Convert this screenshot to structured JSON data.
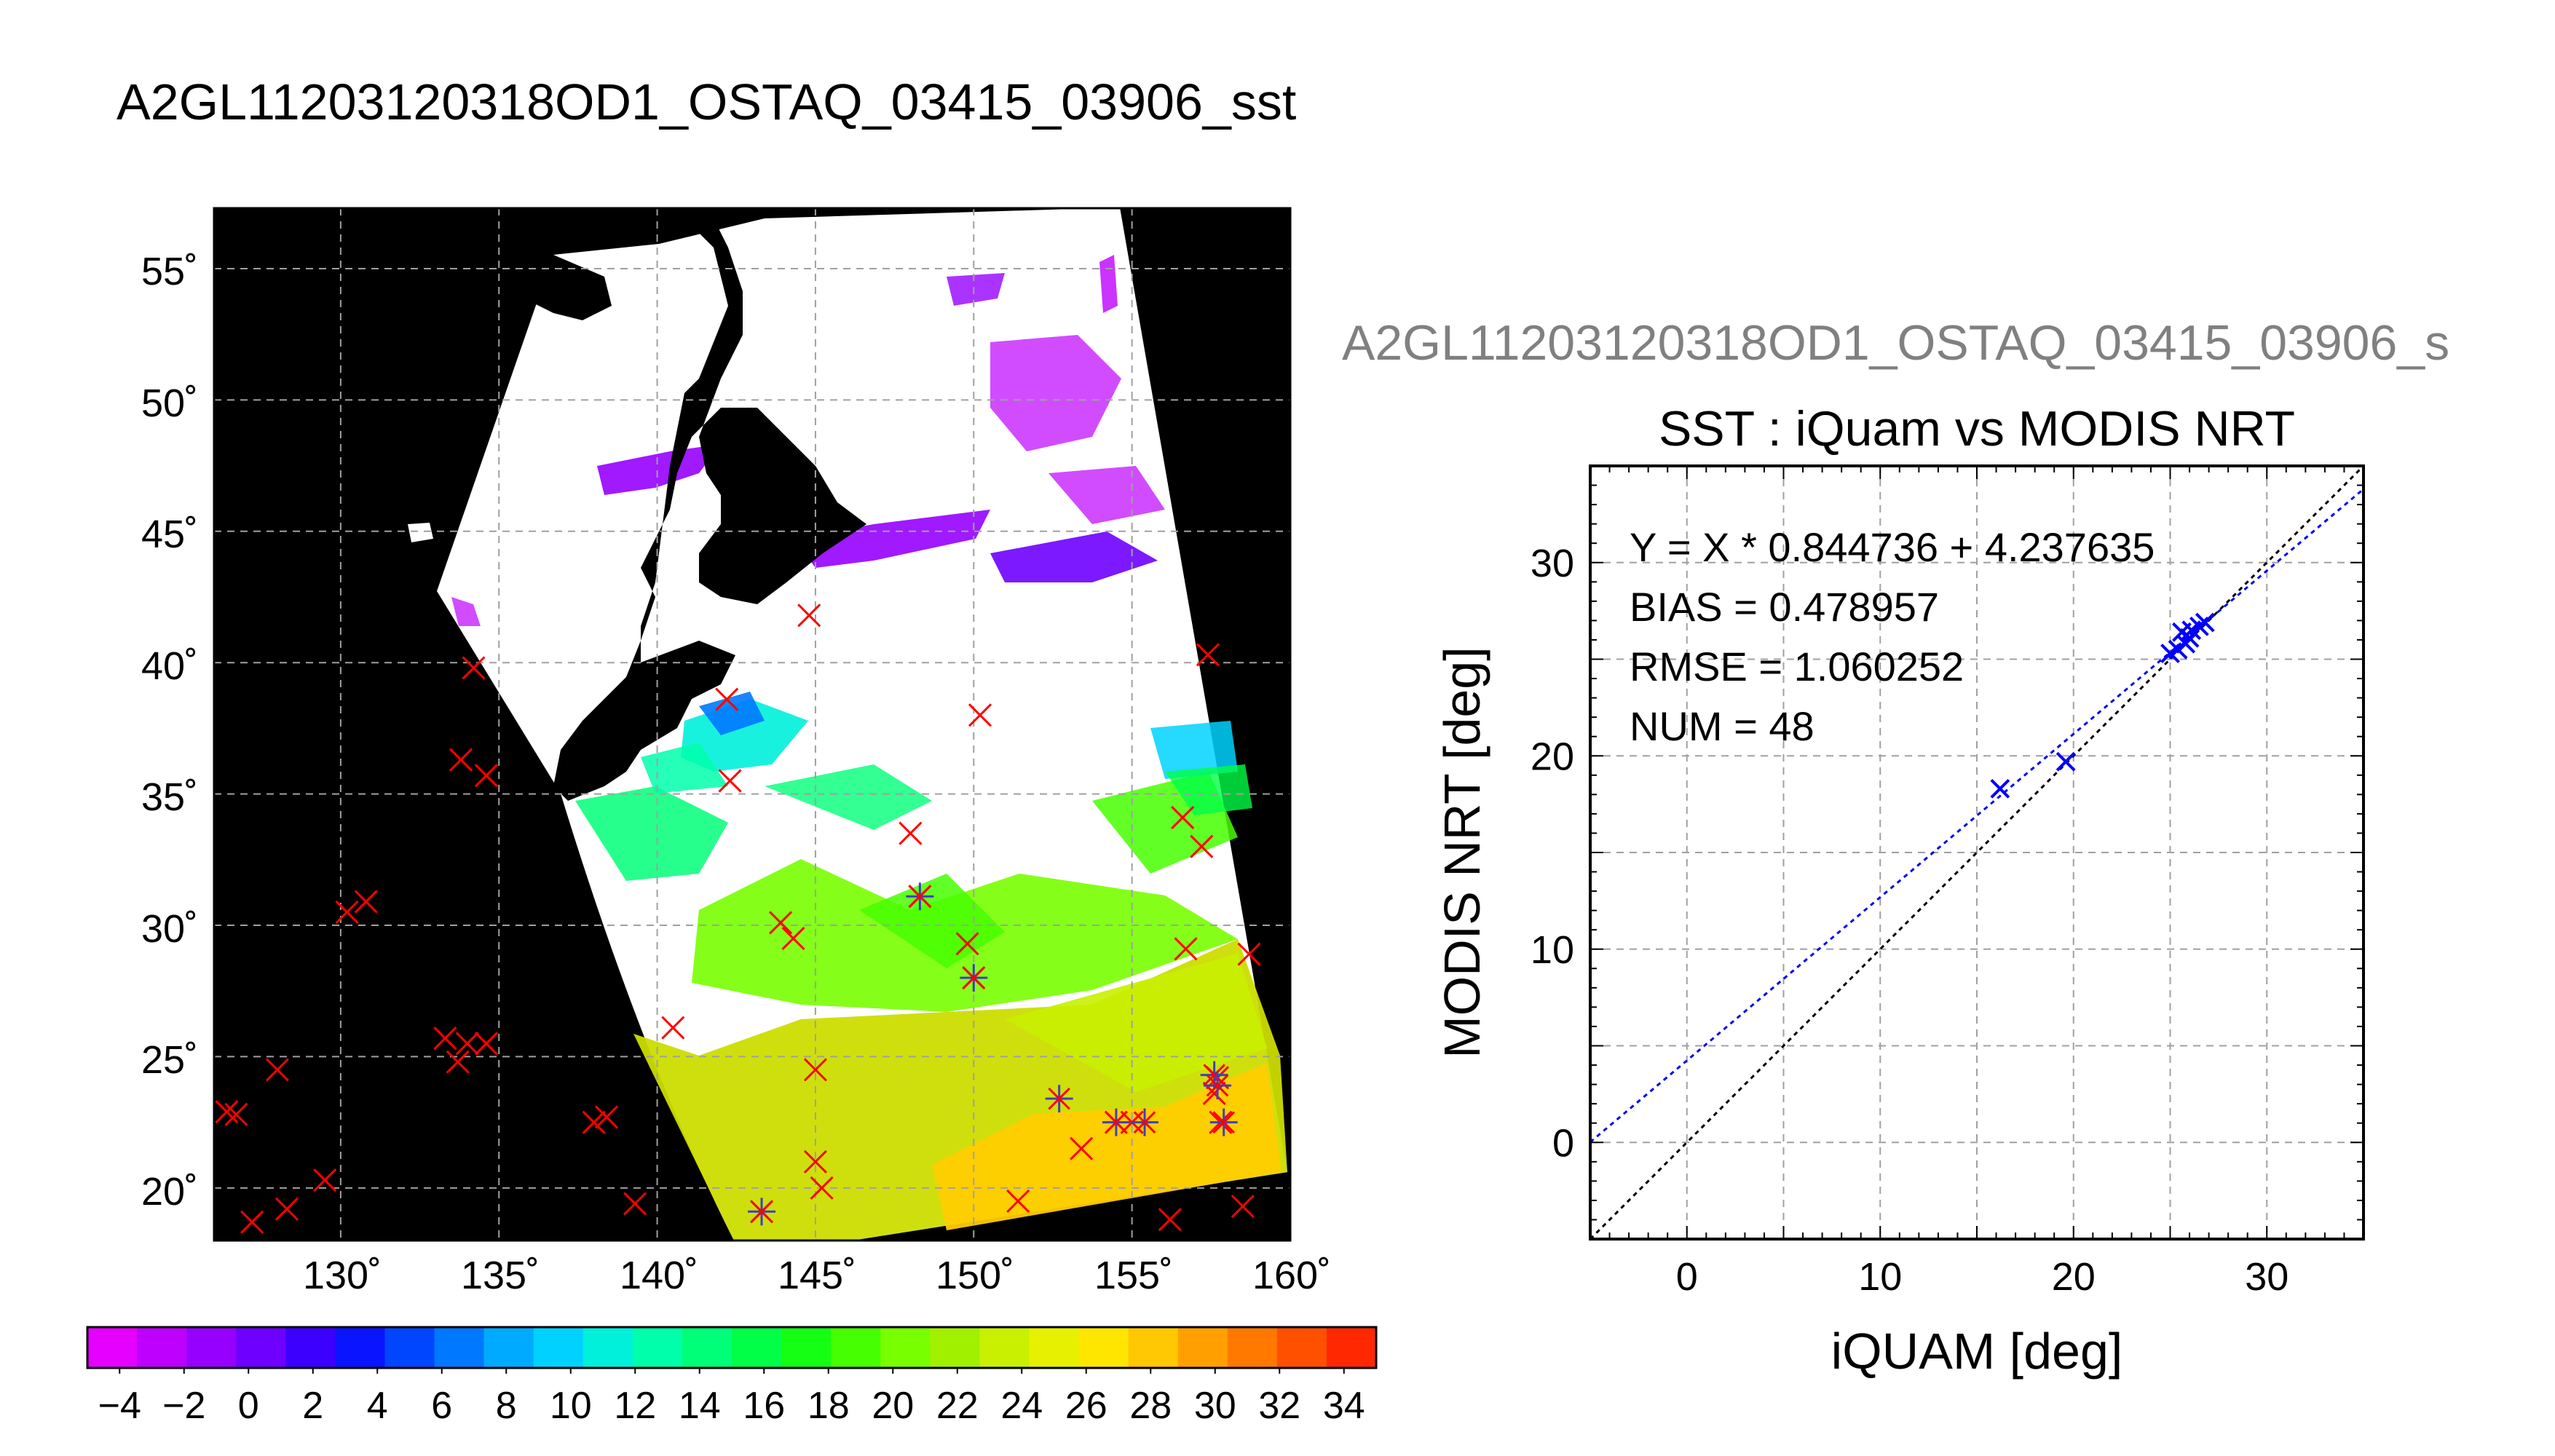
{
  "page_title": "A2GL11203120318OD1_OSTAQ_03415_03906_sst",
  "map": {
    "lat_ticks": [
      {
        "value": 20,
        "label": "20˚"
      },
      {
        "value": 25,
        "label": "25˚"
      },
      {
        "value": 30,
        "label": "30˚"
      },
      {
        "value": 35,
        "label": "35˚"
      },
      {
        "value": 40,
        "label": "40˚"
      },
      {
        "value": 45,
        "label": "45˚"
      },
      {
        "value": 50,
        "label": "50˚"
      },
      {
        "value": 55,
        "label": "55˚"
      }
    ],
    "lon_ticks": [
      {
        "value": 130,
        "label": "130˚"
      },
      {
        "value": 135,
        "label": "135˚"
      },
      {
        "value": 140,
        "label": "140˚"
      },
      {
        "value": 145,
        "label": "145˚"
      },
      {
        "value": 150,
        "label": "150˚"
      },
      {
        "value": 155,
        "label": "155˚"
      },
      {
        "value": 160,
        "label": "160˚"
      }
    ],
    "lon_range": [
      126,
      160
    ],
    "lat_range": [
      18,
      57.3
    ],
    "grid": true
  },
  "colorbar": {
    "labels": [
      "−4",
      "−2",
      "0",
      "2",
      "4",
      "6",
      "8",
      "10",
      "12",
      "14",
      "16",
      "18",
      "20",
      "22",
      "24",
      "26",
      "28",
      "30",
      "32",
      "34"
    ],
    "range": [
      -5,
      35
    ],
    "colors": [
      "#e600ff",
      "#be00ff",
      "#9600ff",
      "#6e00ff",
      "#3c00ff",
      "#0a14ff",
      "#0046ff",
      "#0078ff",
      "#00aaff",
      "#00d2ff",
      "#00f0dc",
      "#00ffaa",
      "#00ff78",
      "#00ff46",
      "#14ff14",
      "#46ff00",
      "#78ff00",
      "#a0f000",
      "#c8f000",
      "#e6f000",
      "#ffe600",
      "#ffc800",
      "#ffa000",
      "#ff7800",
      "#ff5000",
      "#ff2800"
    ]
  },
  "scatter_subtitle": "A2GL11203120318OD1_OSTAQ_03415_03906_s",
  "chart_data": {
    "type": "scatter",
    "title": "SST : iQuam vs MODIS NRT",
    "xlabel": "iQUAM [deg]",
    "ylabel": "MODIS NRT [deg]",
    "xlim": [
      -5,
      35
    ],
    "ylim": [
      -5,
      35
    ],
    "x_ticks": [
      0,
      10,
      20,
      30
    ],
    "y_ticks": [
      0,
      10,
      20,
      30
    ],
    "grid": true,
    "annotations": [
      "Y = X * 0.844736 + 4.237635",
      "BIAS = 0.478957",
      "RMSE = 1.060252",
      "NUM = 48"
    ],
    "fit_line": {
      "slope": 0.844736,
      "intercept": 4.237635,
      "color": "#0000ff"
    },
    "identity_line": {
      "slope": 1,
      "intercept": 0,
      "color": "#000000"
    },
    "points": [
      {
        "x": 16.2,
        "y": 18.3
      },
      {
        "x": 19.6,
        "y": 19.7
      },
      {
        "x": 25.0,
        "y": 25.3
      },
      {
        "x": 25.4,
        "y": 25.5
      },
      {
        "x": 25.6,
        "y": 26.4
      },
      {
        "x": 25.8,
        "y": 25.8
      },
      {
        "x": 26.0,
        "y": 26.1
      },
      {
        "x": 26.1,
        "y": 26.5
      },
      {
        "x": 26.5,
        "y": 26.7
      },
      {
        "x": 26.8,
        "y": 26.9
      }
    ],
    "marker_color": "#0000ff"
  }
}
